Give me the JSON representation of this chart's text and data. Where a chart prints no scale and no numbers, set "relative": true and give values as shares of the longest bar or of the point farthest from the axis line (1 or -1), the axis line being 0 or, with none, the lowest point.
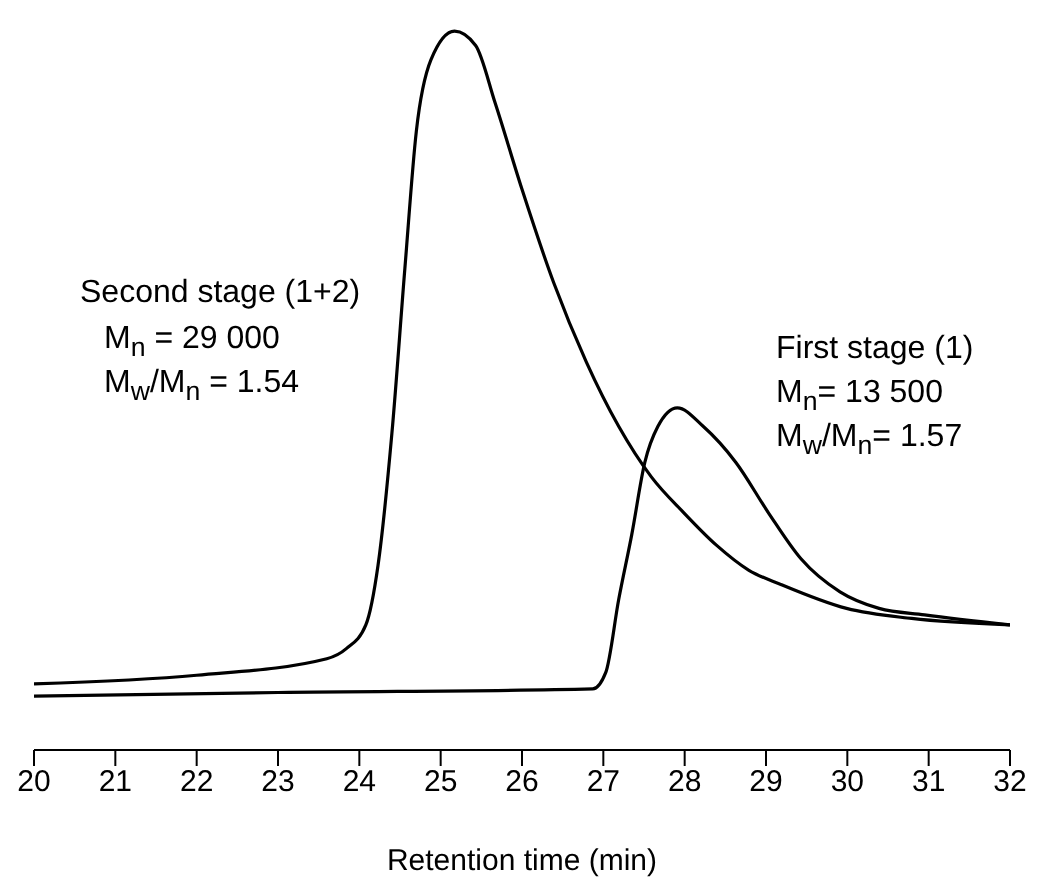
{
  "chart_data": {
    "type": "line",
    "relative": true,
    "xlabel": "Retention time (min)",
    "xlim": [
      20,
      32
    ],
    "xticks": [
      20,
      21,
      22,
      23,
      24,
      25,
      26,
      27,
      28,
      29,
      30,
      31,
      32
    ],
    "marker": "none",
    "line_style": "solid",
    "tick_labels": "x",
    "series": [
      {
        "name": "Second stage (1+2)",
        "color": "#000000",
        "x": [
          20,
          22,
          23.6,
          23.84,
          24.08,
          24.23,
          24.4,
          24.56,
          24.7,
          24.88,
          25.17,
          25.43,
          25.67,
          26,
          26.39,
          26.79,
          27.19,
          27.59,
          27.99,
          28.39,
          28.79,
          29.19,
          29.99,
          30.79,
          32
        ],
        "values": [
          0.092,
          0.104,
          0.127,
          0.141,
          0.174,
          0.257,
          0.44,
          0.67,
          0.86,
          0.96,
          1,
          0.98,
          0.9,
          0.78,
          0.65,
          0.54,
          0.45,
          0.38,
          0.33,
          0.285,
          0.25,
          0.23,
          0.197,
          0.183,
          0.174
        ]
      },
      {
        "name": "First stage (1)",
        "color": "#000000",
        "x": [
          20,
          23,
          26.87,
          27.03,
          27.19,
          27.35,
          27.51,
          27.67,
          27.91,
          28.23,
          28.63,
          29.03,
          29.43,
          29.91,
          30.39,
          30.95,
          32
        ],
        "values": [
          0.075,
          0.08,
          0.085,
          0.108,
          0.21,
          0.3,
          0.4,
          0.45,
          0.476,
          0.45,
          0.4,
          0.33,
          0.266,
          0.22,
          0.197,
          0.188,
          0.174
        ]
      }
    ],
    "annotations": [
      "M$_{n}$ = 29 000",
      "M$_{w}$/M$_{n}$ = 1.54",
      "M$_{n}$= 13 500",
      "M$_{w}$/M$_{n}$= 1.57"
    ]
  }
}
